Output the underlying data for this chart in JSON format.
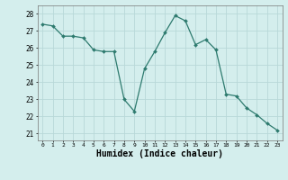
{
  "x": [
    0,
    1,
    2,
    3,
    4,
    5,
    6,
    7,
    8,
    9,
    10,
    11,
    12,
    13,
    14,
    15,
    16,
    17,
    18,
    19,
    20,
    21,
    22,
    23
  ],
  "y": [
    27.4,
    27.3,
    26.7,
    26.7,
    26.6,
    25.9,
    25.8,
    25.8,
    23.0,
    22.3,
    24.8,
    25.8,
    26.9,
    27.9,
    27.6,
    26.2,
    26.5,
    25.9,
    23.3,
    23.2,
    22.5,
    22.1,
    21.6,
    21.2
  ],
  "line_color": "#2d7a6e",
  "marker": "D",
  "marker_size": 2.0,
  "bg_color": "#d4eeed",
  "grid_color": "#b8d8d8",
  "xlabel": "Humidex (Indice chaleur)",
  "xlabel_fontsize": 7,
  "xtick_labels": [
    "0",
    "1",
    "2",
    "3",
    "4",
    "5",
    "6",
    "7",
    "8",
    "9",
    "10",
    "11",
    "12",
    "13",
    "14",
    "15",
    "16",
    "17",
    "18",
    "19",
    "20",
    "21",
    "22",
    "23"
  ],
  "ytick_values": [
    21,
    22,
    23,
    24,
    25,
    26,
    27,
    28
  ],
  "ylim": [
    20.6,
    28.5
  ],
  "xlim": [
    -0.5,
    23.5
  ]
}
